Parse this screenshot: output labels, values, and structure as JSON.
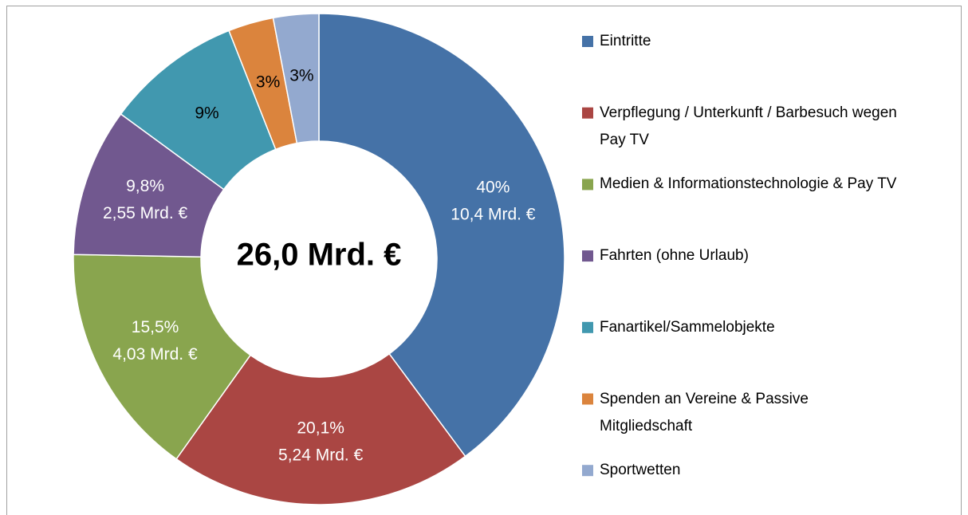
{
  "chart_data": {
    "type": "pie",
    "center_label": "26,0 Mrd. €",
    "categories": [
      "Eintritte",
      "Verpflegung / Unterkunft / Barbesuch wegen Pay TV",
      "Medien & Informationstechnologie & Pay TV",
      "Fahrten (ohne Urlaub)",
      "Fanartikel/Sammelobjekte",
      "Spenden an Vereine & Passive Mitgliedschaft",
      "Sportwetten"
    ],
    "values": [
      40,
      20.1,
      15.5,
      9.8,
      9,
      3,
      3
    ],
    "value_labels": [
      "40%",
      "20,1%",
      "15,5%",
      "9,8%",
      "9%",
      "3%",
      "3%"
    ],
    "amount_labels": [
      "10,4 Mrd. €",
      "5,24 Mrd. €",
      "4,03 Mrd. €",
      "2,55 Mrd. €",
      null,
      null,
      null
    ],
    "colors": [
      "#4572a7",
      "#aa4643",
      "#89a54e",
      "#71588f",
      "#4198af",
      "#db843d",
      "#93a9cf"
    ],
    "legend": "right"
  }
}
